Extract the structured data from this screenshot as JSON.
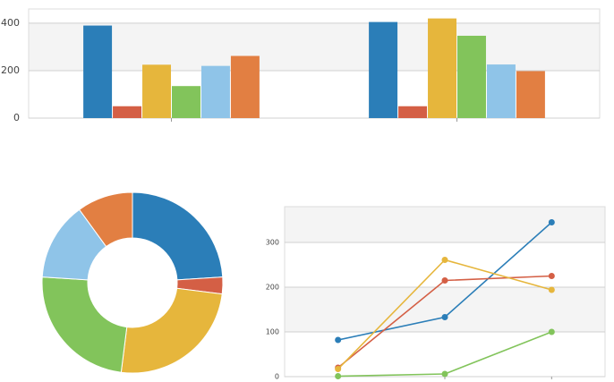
{
  "chart_data": [
    {
      "type": "bar",
      "categories": [
        null,
        null
      ],
      "series": [
        {
          "color": "#2b7eb8",
          "values": [
            390,
            405
          ]
        },
        {
          "color": "#d45f45",
          "values": [
            50,
            50
          ]
        },
        {
          "color": "#e6b63c",
          "values": [
            225,
            420
          ]
        },
        {
          "color": "#82c45b",
          "values": [
            135,
            347
          ]
        },
        {
          "color": "#8fc4e8",
          "values": [
            220,
            226
          ]
        },
        {
          "color": "#e27f42",
          "values": [
            262,
            198
          ]
        }
      ],
      "ylim": [
        0,
        460
      ],
      "yticks": [
        0,
        200,
        400
      ],
      "grid": true
    },
    {
      "type": "pie",
      "donut": true,
      "values": [
        24,
        3,
        25,
        24,
        14,
        10
      ],
      "colors": [
        "#2b7eb8",
        "#d45f45",
        "#e6b63c",
        "#82c45b",
        "#8fc4e8",
        "#e27f42"
      ]
    },
    {
      "type": "line",
      "categories": [
        null,
        null,
        null
      ],
      "series": [
        {
          "color": "#2b7eb8",
          "values": [
            82,
            133,
            345
          ]
        },
        {
          "color": "#d45f45",
          "values": [
            20,
            215,
            225
          ]
        },
        {
          "color": "#e6b63c",
          "values": [
            17,
            261,
            194
          ]
        },
        {
          "color": "#82c45b",
          "values": [
            1,
            6,
            100
          ]
        }
      ],
      "ylim": [
        0,
        380
      ],
      "yticks": [
        0,
        100,
        200,
        300
      ],
      "grid": true
    }
  ]
}
